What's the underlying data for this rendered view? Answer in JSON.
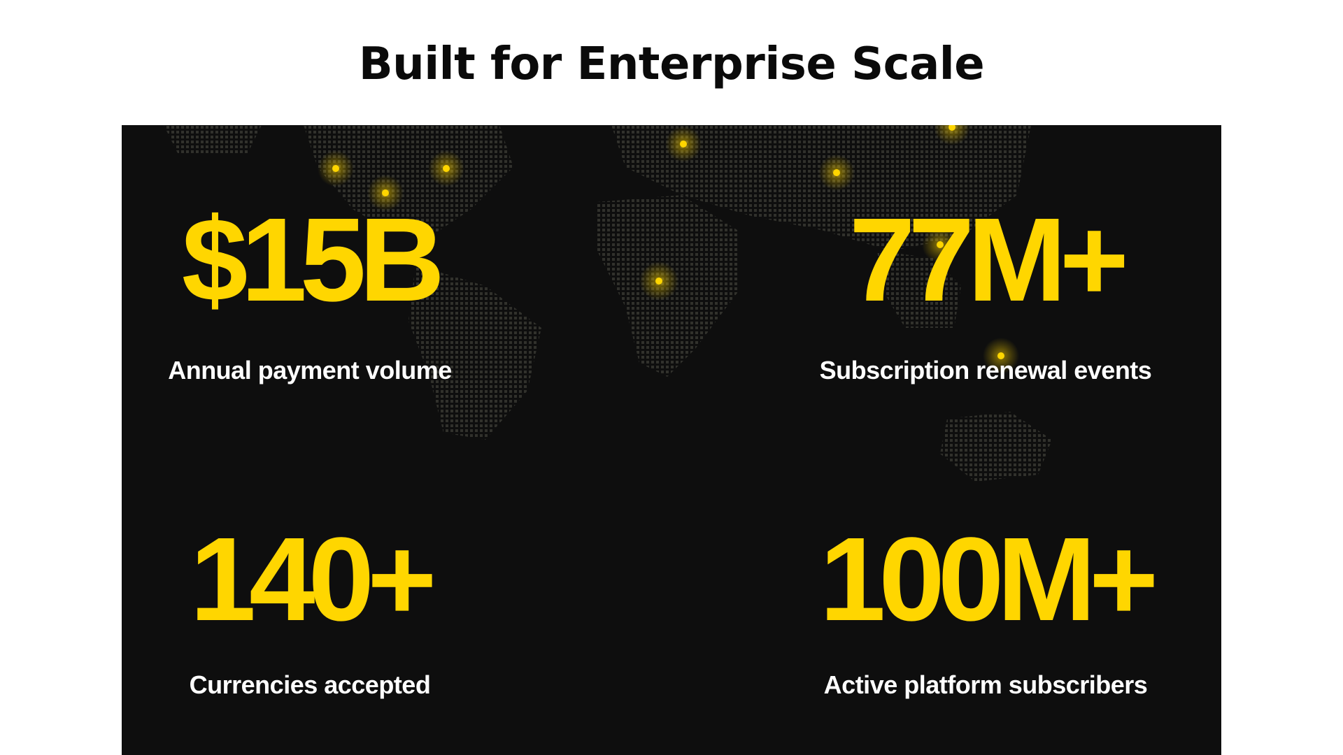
{
  "title": "Built for Enterprise Scale",
  "colors": {
    "accent": "#ffd600",
    "panel_bg": "#0e0e0e",
    "label": "#ffffff"
  },
  "stats": [
    {
      "value": "$15B",
      "label": "Annual payment volume"
    },
    {
      "value": "77M+",
      "label": "Subscription renewal events"
    },
    {
      "value": "140+",
      "label": "Currencies accepted"
    },
    {
      "value": "100M+",
      "label": "Active platform subscribers"
    }
  ]
}
